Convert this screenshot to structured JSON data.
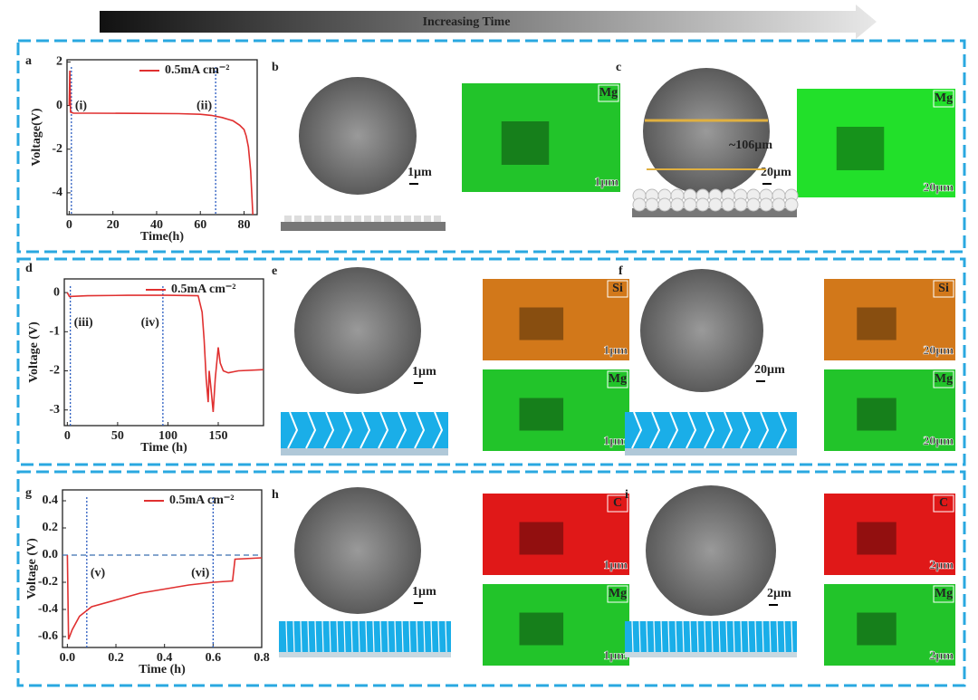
{
  "header": {
    "title": "Increasing Time"
  },
  "chart_data": [
    {
      "type": "line",
      "panel_label": "a",
      "x_label": "Time(h)",
      "y_label": "Voltage(V)",
      "x": [
        0,
        0.3,
        0.6,
        2,
        10,
        30,
        50,
        60,
        65,
        70,
        75,
        78,
        80,
        81,
        82,
        83,
        83.5,
        84
      ],
      "series": [
        {
          "name": "0.5mA cm⁻²",
          "color": "#e03030",
          "values": [
            0,
            1.6,
            -0.3,
            -0.35,
            -0.35,
            -0.36,
            -0.37,
            -0.4,
            -0.45,
            -0.55,
            -0.7,
            -0.9,
            -1.1,
            -1.4,
            -1.9,
            -3,
            -4,
            -5
          ]
        }
      ],
      "xlim": [
        -1,
        86
      ],
      "ylim": [
        -5,
        2.1
      ],
      "xticks": [
        0,
        20,
        40,
        60,
        80
      ],
      "yticks": [
        2,
        0,
        -2,
        -4
      ],
      "annotations": [
        {
          "text": "(i)",
          "x": 1
        },
        {
          "text": "(ii)",
          "x": 67
        }
      ],
      "legend": "upper right"
    },
    {
      "type": "line",
      "panel_label": "d",
      "x_label": "Time (h)",
      "y_label": "Voltage (V)",
      "x": [
        0,
        2,
        20,
        60,
        100,
        130,
        134,
        136,
        138,
        140,
        141,
        143,
        145,
        147,
        150,
        152,
        155,
        160,
        170,
        195
      ],
      "series": [
        {
          "name": "0.5mA cm⁻²",
          "color": "#e03030",
          "values": [
            0,
            -0.1,
            -0.08,
            -0.07,
            -0.07,
            -0.08,
            -0.5,
            -1.2,
            -2.2,
            -2.8,
            -2.0,
            -2.5,
            -3.05,
            -2.2,
            -1.4,
            -1.8,
            -2.0,
            -2.05,
            -2.0,
            -1.97
          ]
        }
      ],
      "xlim": [
        -3,
        195
      ],
      "ylim": [
        -3.4,
        0.35
      ],
      "xticks": [
        0,
        50,
        100,
        150
      ],
      "yticks": [
        0,
        -1,
        -2,
        -3
      ],
      "annotations": [
        {
          "text": "(iii)",
          "x": 3
        },
        {
          "text": "(iv)",
          "x": 95
        }
      ],
      "legend": "upper right"
    },
    {
      "type": "line",
      "panel_label": "g",
      "x_label": "Time (h)",
      "y_label": "Voltage (V)",
      "x": [
        0,
        0.005,
        0.02,
        0.05,
        0.1,
        0.2,
        0.3,
        0.4,
        0.5,
        0.6,
        0.68,
        0.69,
        0.8
      ],
      "series": [
        {
          "name": "0.5mA cm⁻²",
          "color": "#e03030",
          "values": [
            0,
            -0.62,
            -0.55,
            -0.45,
            -0.38,
            -0.33,
            -0.28,
            -0.25,
            -0.22,
            -0.2,
            -0.19,
            -0.03,
            -0.02
          ]
        }
      ],
      "xlim": [
        -0.02,
        0.8
      ],
      "ylim": [
        -0.68,
        0.48
      ],
      "xticks": [
        {
          "value": 0,
          "label": "0.0"
        },
        0.2,
        0.4,
        0.6,
        0.8
      ],
      "yticks": [
        0.4,
        0.2,
        {
          "value": 0,
          "label": "0.0"
        },
        -0.2,
        -0.4,
        -0.6
      ],
      "hline": 0,
      "annotations": [
        {
          "text": "(v)",
          "x": 0.08
        },
        {
          "text": "(vi)",
          "x": 0.6
        }
      ],
      "legend": "upper right"
    }
  ],
  "panels": [
    {
      "label": "b",
      "scale": "1µm",
      "maps": [
        {
          "element": "Mg",
          "scale": "1µm",
          "color": "#22c42a"
        }
      ]
    },
    {
      "label": "c",
      "scale": "20µm",
      "note": "~106µm",
      "maps": [
        {
          "element": "Mg",
          "scale": "20µm",
          "color": "#22e02a"
        }
      ]
    },
    {
      "label": "e",
      "scale": "1µm",
      "maps": [
        {
          "element": "Si",
          "scale": "1µm",
          "color": "#d2781a"
        },
        {
          "element": "Mg",
          "scale": "1µm",
          "color": "#22c42a"
        }
      ]
    },
    {
      "label": "f",
      "scale": "20µm",
      "maps": [
        {
          "element": "Si",
          "scale": "20µm",
          "color": "#d2781a"
        },
        {
          "element": "Mg",
          "scale": "20µm",
          "color": "#22c42a"
        }
      ]
    },
    {
      "label": "h",
      "scale": "1µm",
      "maps": [
        {
          "element": "C",
          "scale": "1µm",
          "color": "#e01818"
        },
        {
          "element": "Mg",
          "scale": "1µm",
          "color": "#22c42a"
        }
      ]
    },
    {
      "label": "i",
      "scale": "2µm",
      "maps": [
        {
          "element": "C",
          "scale": "2µm",
          "color": "#e01818"
        },
        {
          "element": "Mg",
          "scale": "2µm",
          "color": "#22c42a"
        }
      ]
    }
  ]
}
